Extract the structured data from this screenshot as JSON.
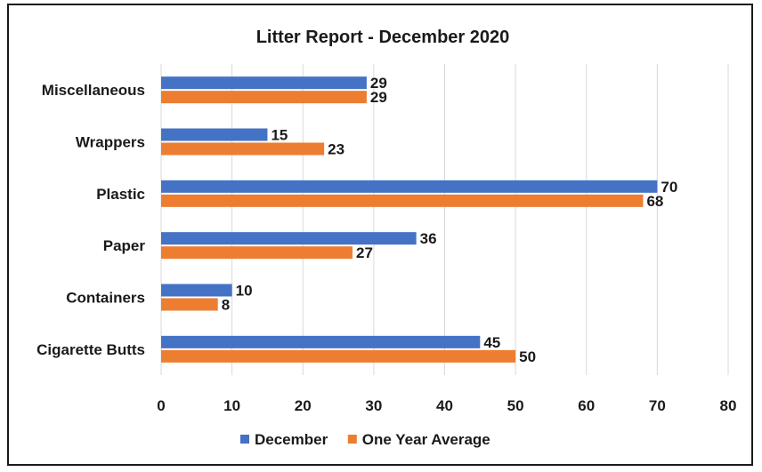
{
  "chart_data": {
    "type": "bar",
    "orientation": "horizontal",
    "title": "Litter Report - December 2020",
    "categories": [
      "Miscellaneous",
      "Wrappers",
      "Plastic",
      "Paper",
      "Containers",
      "Cigarette Butts"
    ],
    "series": [
      {
        "name": "December",
        "color": "#4472C4",
        "values": [
          29,
          15,
          70,
          36,
          10,
          45
        ]
      },
      {
        "name": "One Year Average",
        "color": "#ED7D31",
        "values": [
          29,
          23,
          68,
          27,
          8,
          50
        ]
      }
    ],
    "xlim": [
      0,
      80
    ],
    "xticks": [
      "0",
      "10",
      "20",
      "30",
      "40",
      "50",
      "60",
      "70",
      "80"
    ],
    "grid": true,
    "legend_position": "bottom"
  }
}
